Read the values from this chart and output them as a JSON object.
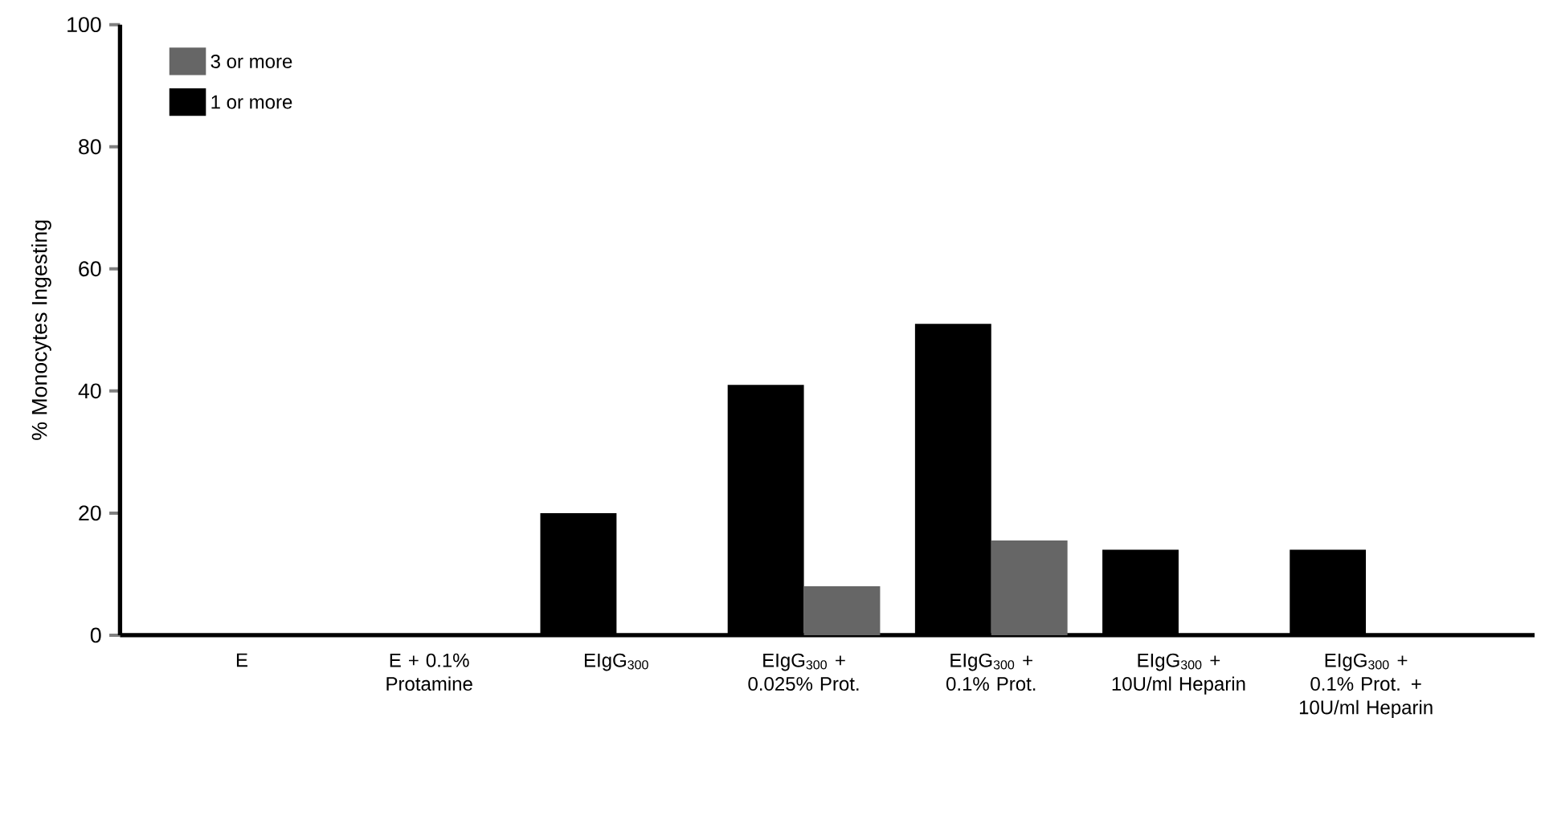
{
  "chart_data": {
    "type": "bar",
    "ylabel": "% Monocytes Ingesting",
    "categories": [
      "E",
      "E + 0.1% Protamine",
      "EIgG$_{300}$",
      "EIgG$_{300}$ + 0.025% Prot.",
      "EIgG$_{300}$ + 0.1% Prot.",
      "EIgG$_{300}$ + 10U/ml Heparin",
      "EIgG$_{300}$ + 0.1% Prot. + 10U/ml Heparin"
    ],
    "series": [
      {
        "name": "1 or more",
        "color": "#000000",
        "values": [
          0,
          0,
          20,
          41,
          51,
          14,
          14
        ]
      },
      {
        "name": "3 or more",
        "color": "#666666",
        "values": [
          0,
          0,
          0,
          8,
          15.5,
          0,
          0
        ]
      }
    ],
    "ylim": [
      0,
      100
    ],
    "yticks": [
      0,
      20,
      40,
      60,
      80,
      100
    ],
    "legend": "top left",
    "grid": false
  }
}
